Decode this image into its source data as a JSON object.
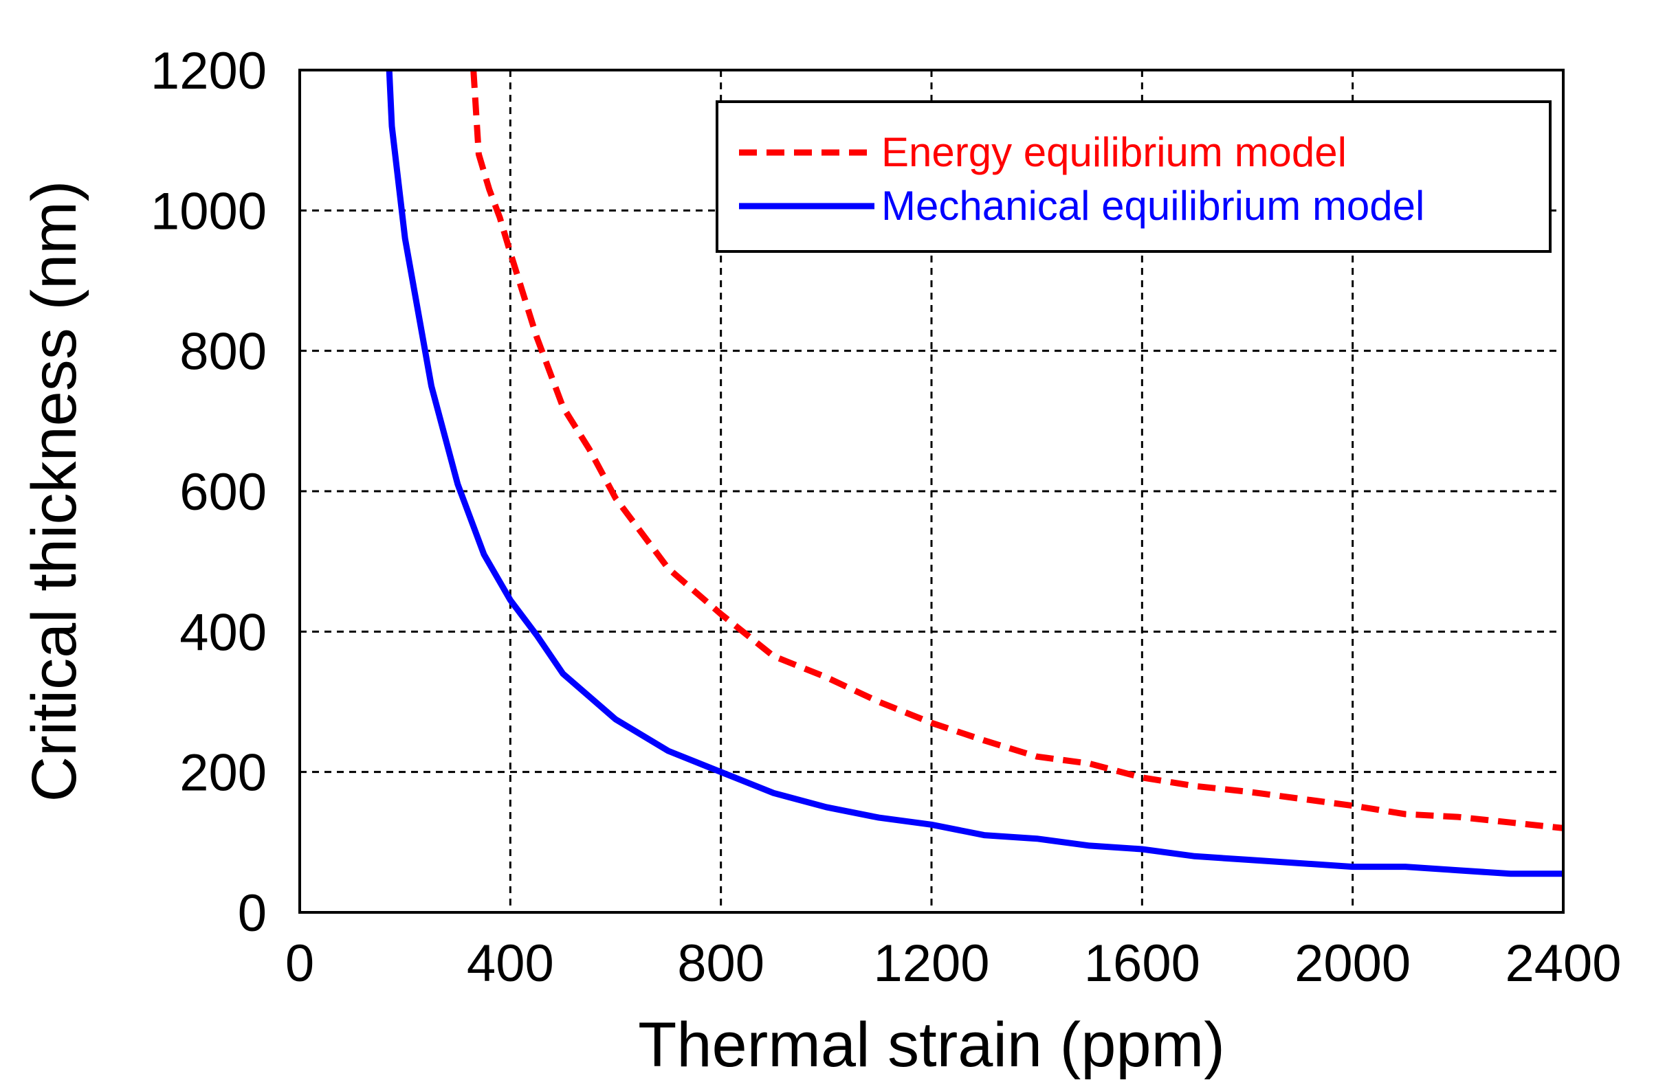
{
  "chart_data": {
    "type": "line",
    "xlabel": "Thermal strain (ppm)",
    "ylabel": "Critical thickness (nm)",
    "xlim": [
      0,
      2400
    ],
    "ylim": [
      0,
      1200
    ],
    "xticks": [
      0,
      400,
      800,
      1200,
      1600,
      2000,
      2400
    ],
    "yticks": [
      0,
      200,
      400,
      600,
      800,
      1000,
      1200
    ],
    "xtick_labels": [
      "0",
      "400",
      "800",
      "1200",
      "1600",
      "2000",
      "2400"
    ],
    "ytick_labels": [
      "0",
      "200",
      "400",
      "600",
      "800",
      "1000",
      "1200"
    ],
    "grid": true,
    "legend_position": "top-right",
    "series": [
      {
        "name": "Energy equilibrium model",
        "color": "#ff0000",
        "style": "dashed",
        "x": [
          330,
          340,
          360,
          380,
          400,
          450,
          500,
          550,
          600,
          700,
          800,
          900,
          1000,
          1100,
          1200,
          1300,
          1400,
          1500,
          1600,
          1700,
          1800,
          1900,
          2000,
          2100,
          2200,
          2300,
          2400
        ],
        "y": [
          1200,
          1080,
          1030,
          990,
          940,
          820,
          720,
          660,
          590,
          490,
          425,
          365,
          335,
          300,
          270,
          245,
          222,
          212,
          192,
          180,
          172,
          162,
          152,
          140,
          136,
          128,
          120
        ]
      },
      {
        "name": "Mechanical equilibrium model",
        "color": "#0000ff",
        "style": "solid",
        "x": [
          170,
          175,
          200,
          250,
          300,
          350,
          400,
          450,
          500,
          600,
          700,
          800,
          900,
          1000,
          1100,
          1200,
          1300,
          1400,
          1500,
          1600,
          1700,
          1800,
          1900,
          2000,
          2100,
          2200,
          2300,
          2400
        ],
        "y": [
          1200,
          1120,
          960,
          750,
          610,
          510,
          445,
          395,
          340,
          275,
          230,
          200,
          170,
          150,
          135,
          125,
          110,
          105,
          95,
          90,
          80,
          75,
          70,
          65,
          65,
          60,
          55,
          55
        ]
      }
    ]
  }
}
